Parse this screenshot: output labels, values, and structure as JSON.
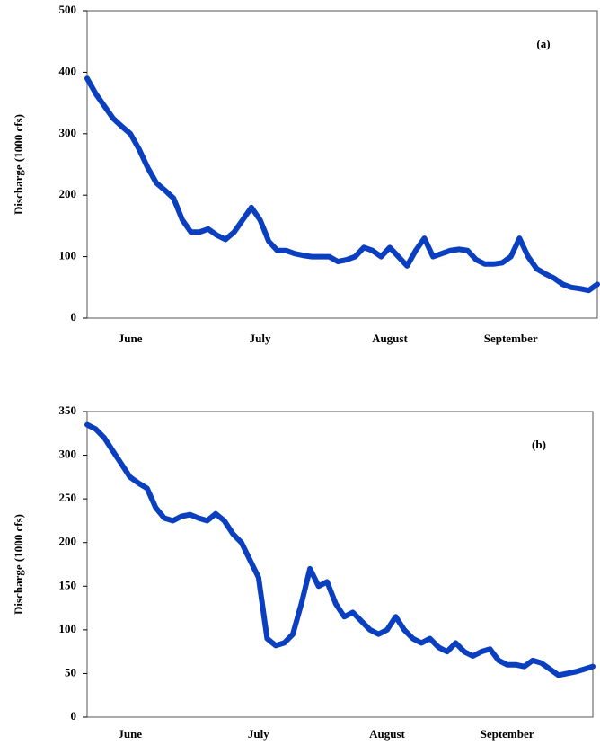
{
  "chart_data": [
    {
      "type": "line",
      "annotation": "(a)",
      "ylabel": "Discharge (1000 cfs)",
      "color": "#0a3fc0",
      "categories": [
        null,
        null,
        null,
        null,
        null,
        "June",
        null,
        null,
        null,
        null,
        null,
        null,
        null,
        null,
        null,
        null,
        null,
        null,
        null,
        null,
        "July",
        null,
        null,
        null,
        null,
        null,
        null,
        null,
        null,
        null,
        null,
        null,
        null,
        null,
        null,
        "August",
        null,
        null,
        null,
        null,
        null,
        null,
        null,
        null,
        null,
        null,
        null,
        null,
        null,
        "September",
        null,
        null,
        null,
        null,
        null,
        null,
        null,
        null,
        null,
        null
      ],
      "values": [
        390,
        365,
        345,
        325,
        312,
        300,
        275,
        245,
        220,
        208,
        195,
        160,
        140,
        140,
        145,
        135,
        128,
        140,
        160,
        180,
        160,
        125,
        110,
        110,
        105,
        102,
        100,
        100,
        100,
        92,
        95,
        100,
        115,
        110,
        100,
        115,
        100,
        85,
        110,
        130,
        100,
        105,
        110,
        112,
        110,
        95,
        88,
        88,
        90,
        100,
        130,
        100,
        80,
        72,
        65,
        55,
        50,
        48,
        45,
        55
      ],
      "ylim": [
        0,
        500
      ],
      "yticks": [
        0,
        100,
        200,
        300,
        400,
        500
      ]
    },
    {
      "type": "line",
      "annotation": "(b)",
      "ylabel": "Discharge (1000 cfs)",
      "color": "#0a3fc0",
      "categories": [
        null,
        null,
        null,
        null,
        null,
        "June",
        null,
        null,
        null,
        null,
        null,
        null,
        null,
        null,
        null,
        null,
        null,
        null,
        null,
        null,
        "July",
        null,
        null,
        null,
        null,
        null,
        null,
        null,
        null,
        null,
        null,
        null,
        null,
        null,
        null,
        "August",
        null,
        null,
        null,
        null,
        null,
        null,
        null,
        null,
        null,
        null,
        null,
        null,
        null,
        "September",
        null,
        null,
        null,
        null,
        null,
        null,
        null,
        null,
        null,
        null
      ],
      "values": [
        335,
        330,
        320,
        305,
        290,
        275,
        268,
        262,
        240,
        228,
        225,
        230,
        232,
        228,
        225,
        233,
        225,
        210,
        200,
        180,
        160,
        90,
        82,
        85,
        95,
        130,
        170,
        150,
        155,
        130,
        115,
        120,
        110,
        100,
        95,
        100,
        115,
        100,
        90,
        85,
        90,
        80,
        75,
        85,
        75,
        70,
        75,
        78,
        65,
        60,
        60,
        58,
        65,
        62,
        55,
        48,
        50,
        52,
        55,
        58
      ],
      "ylim": [
        0,
        350
      ],
      "yticks": [
        0,
        50,
        100,
        150,
        200,
        250,
        300,
        350
      ]
    }
  ]
}
